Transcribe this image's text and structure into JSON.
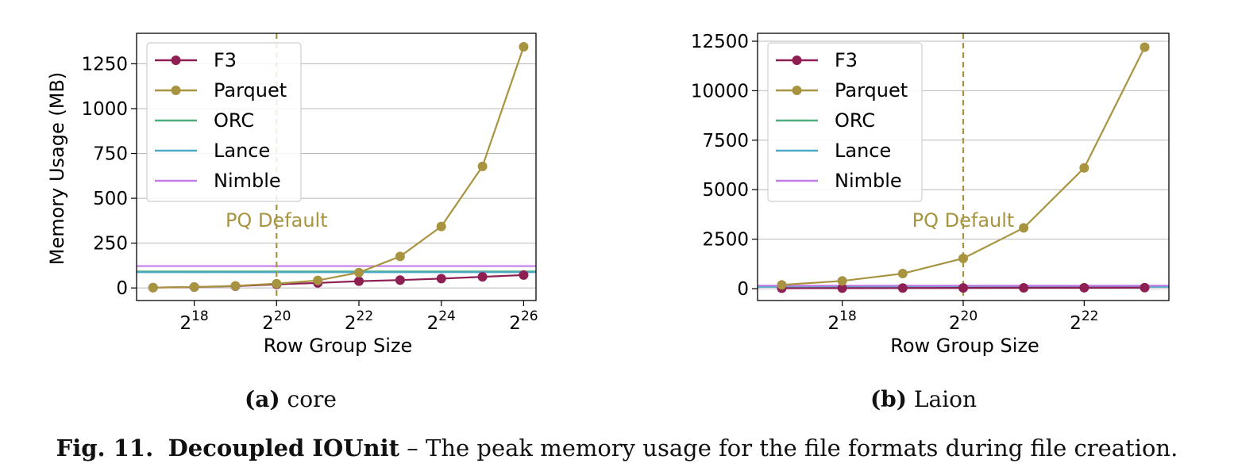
{
  "chart_data": [
    {
      "type": "line",
      "subcaption_label": "(a)",
      "subcaption_text": "core",
      "xlabel": "Row Group Size",
      "ylabel": "Memory Usage (MB)",
      "x_scale": "log2",
      "xlim_exp": [
        16.6,
        26.3
      ],
      "x_tick_exponents": [
        18,
        20,
        22,
        24,
        26
      ],
      "ylim": [
        -70,
        1420
      ],
      "y_ticks": [
        0,
        250,
        500,
        750,
        1000,
        1250
      ],
      "grid": "horizontal",
      "legend_position": "upper-left",
      "vline": {
        "exponent": 20,
        "label": "PQ Default",
        "color": "#a89440"
      },
      "series": [
        {
          "name": "F3",
          "color": "#8e1f52",
          "marker": true,
          "x_exp": [
            17,
            18,
            19,
            20,
            21,
            22,
            23,
            24,
            25,
            26
          ],
          "values": [
            2,
            5,
            10,
            20,
            28,
            38,
            44,
            52,
            62,
            72
          ]
        },
        {
          "name": "Parquet",
          "color": "#a89440",
          "marker": true,
          "x_exp": [
            17,
            18,
            19,
            20,
            21,
            22,
            23,
            24,
            25,
            26
          ],
          "values": [
            2,
            5,
            12,
            24,
            42,
            86,
            176,
            343,
            678,
            1345
          ]
        },
        {
          "name": "ORC",
          "color": "#4caf7d",
          "marker": false,
          "constant": 92
        },
        {
          "name": "Lance",
          "color": "#4aa9c4",
          "marker": false,
          "constant": 88
        },
        {
          "name": "Nimble",
          "color": "#c27ee6",
          "marker": false,
          "constant": 122
        }
      ]
    },
    {
      "type": "line",
      "subcaption_label": "(b)",
      "subcaption_text": "Laion",
      "xlabel": "Row Group Size",
      "ylabel": "",
      "x_scale": "log2",
      "xlim_exp": [
        16.6,
        23.4
      ],
      "x_tick_exponents": [
        18,
        20,
        22
      ],
      "ylim": [
        -600,
        12900
      ],
      "y_ticks": [
        0,
        2500,
        5000,
        7500,
        10000,
        12500
      ],
      "grid": "horizontal",
      "legend_position": "upper-left",
      "vline": {
        "exponent": 20,
        "label": "PQ Default",
        "color": "#a89440"
      },
      "series": [
        {
          "name": "F3",
          "color": "#8e1f52",
          "marker": true,
          "x_exp": [
            17,
            18,
            19,
            20,
            21,
            22,
            23
          ],
          "values": [
            20,
            25,
            30,
            35,
            40,
            45,
            50
          ]
        },
        {
          "name": "Parquet",
          "color": "#a89440",
          "marker": true,
          "x_exp": [
            17,
            18,
            19,
            20,
            21,
            22,
            23
          ],
          "values": [
            190,
            390,
            760,
            1530,
            3070,
            6100,
            12200
          ]
        },
        {
          "name": "ORC",
          "color": "#4caf7d",
          "marker": false,
          "constant": 110
        },
        {
          "name": "Lance",
          "color": "#4aa9c4",
          "marker": false,
          "constant": 90
        },
        {
          "name": "Nimble",
          "color": "#c27ee6",
          "marker": false,
          "constant": 150
        }
      ]
    }
  ],
  "caption": {
    "fig_label": "Fig. 11.",
    "title": "Decoupled IOUnit",
    "text": " – The peak memory usage for the file formats during file creation."
  }
}
